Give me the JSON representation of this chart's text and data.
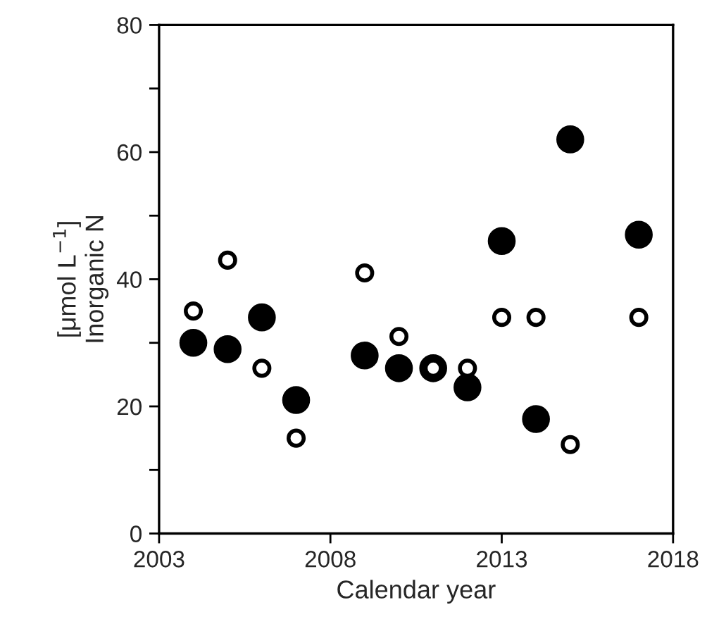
{
  "chart_data": {
    "type": "scatter",
    "xlabel": "Calendar year",
    "ylabel": "[μmol L$^{−1}$]\nInorganic N",
    "x": [
      2004,
      2005,
      2006,
      2007,
      2009,
      2010,
      2011,
      2012,
      2013,
      2014,
      2015,
      2017
    ],
    "series": [
      {
        "color": "#000000",
        "values": [
          30,
          29,
          34,
          21,
          28,
          26,
          26,
          23,
          46,
          18,
          62,
          47
        ],
        "sizes": [
          1,
          1,
          1,
          1,
          1,
          1,
          1,
          1,
          1,
          1,
          1,
          1
        ]
      },
      {
        "color": "#ffffff",
        "values": [
          35,
          43,
          26,
          15,
          41,
          31,
          26,
          26,
          34,
          34,
          14,
          34
        ],
        "sizes": [
          0.4,
          0.4,
          0.4,
          0.4,
          0.4,
          0.4,
          0.4,
          0.4,
          0.4,
          0.4,
          0.4,
          0.4
        ]
      }
    ],
    "xlim": [
      2003,
      2018
    ],
    "xticks": [
      2003,
      2008,
      2013,
      2018
    ],
    "ylim": [
      0,
      80
    ],
    "yticks": [
      0,
      {
        "value": 10,
        "label": null
      },
      20,
      {
        "value": 30,
        "label": null
      },
      40,
      {
        "value": 50,
        "label": null
      },
      60,
      {
        "value": 70,
        "label": null
      },
      80
    ],
    "marker": "circle",
    "grid": false,
    "legend": false
  }
}
